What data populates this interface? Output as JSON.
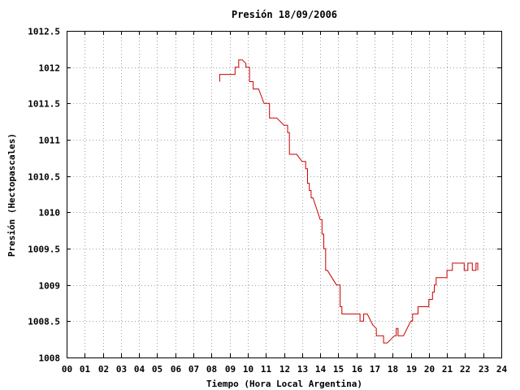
{
  "chart_data": {
    "type": "line",
    "title": "Presión 18/09/2006",
    "xlabel": "Tiempo (Hora Local Argentina)",
    "ylabel": "Presión (Hectopascales)",
    "xlim": [
      0,
      24
    ],
    "ylim": [
      1008,
      1012.5
    ],
    "x_ticks": [
      0,
      1,
      2,
      3,
      4,
      5,
      6,
      7,
      8,
      9,
      10,
      11,
      12,
      13,
      14,
      15,
      16,
      17,
      18,
      19,
      20,
      21,
      22,
      23,
      24
    ],
    "x_tick_labels": [
      "00",
      "01",
      "02",
      "03",
      "04",
      "05",
      "06",
      "07",
      "08",
      "09",
      "10",
      "11",
      "12",
      "13",
      "14",
      "15",
      "16",
      "17",
      "18",
      "19",
      "20",
      "21",
      "22",
      "23",
      "24"
    ],
    "y_ticks": [
      1008,
      1008.5,
      1009,
      1009.5,
      1010,
      1010.5,
      1011,
      1011.5,
      1012,
      1012.5
    ],
    "y_tick_labels": [
      "1008",
      "1008.5",
      "1009",
      "1009.5",
      "1010",
      "1010.5",
      "1011",
      "1011.5",
      "1012",
      "1012.5"
    ],
    "grid": true,
    "legend": "none",
    "series": [
      {
        "color": "#cc0000",
        "points": [
          [
            8.45,
            1011.8
          ],
          [
            8.45,
            1011.9
          ],
          [
            9.3,
            1011.9
          ],
          [
            9.3,
            1012.0
          ],
          [
            9.5,
            1012.0
          ],
          [
            9.5,
            1012.1
          ],
          [
            9.7,
            1012.1
          ],
          [
            9.9,
            1012.05
          ],
          [
            9.9,
            1012.0
          ],
          [
            10.1,
            1012.0
          ],
          [
            10.1,
            1011.8
          ],
          [
            10.3,
            1011.8
          ],
          [
            10.3,
            1011.7
          ],
          [
            10.6,
            1011.7
          ],
          [
            10.9,
            1011.5
          ],
          [
            11.2,
            1011.5
          ],
          [
            11.2,
            1011.3
          ],
          [
            11.6,
            1011.3
          ],
          [
            12.0,
            1011.2
          ],
          [
            12.2,
            1011.2
          ],
          [
            12.2,
            1011.1
          ],
          [
            12.3,
            1011.1
          ],
          [
            12.3,
            1010.8
          ],
          [
            12.7,
            1010.8
          ],
          [
            13.0,
            1010.7
          ],
          [
            13.2,
            1010.7
          ],
          [
            13.2,
            1010.6
          ],
          [
            13.3,
            1010.6
          ],
          [
            13.3,
            1010.4
          ],
          [
            13.4,
            1010.4
          ],
          [
            13.4,
            1010.3
          ],
          [
            13.5,
            1010.3
          ],
          [
            13.5,
            1010.2
          ],
          [
            13.6,
            1010.2
          ],
          [
            14.0,
            1009.9
          ],
          [
            14.1,
            1009.9
          ],
          [
            14.1,
            1009.7
          ],
          [
            14.2,
            1009.7
          ],
          [
            14.2,
            1009.5
          ],
          [
            14.3,
            1009.5
          ],
          [
            14.3,
            1009.2
          ],
          [
            14.4,
            1009.2
          ],
          [
            14.9,
            1009.0
          ],
          [
            15.1,
            1009.0
          ],
          [
            15.1,
            1008.7
          ],
          [
            15.2,
            1008.7
          ],
          [
            15.2,
            1008.6
          ],
          [
            16.2,
            1008.6
          ],
          [
            16.2,
            1008.5
          ],
          [
            16.4,
            1008.5
          ],
          [
            16.4,
            1008.6
          ],
          [
            16.6,
            1008.6
          ],
          [
            16.9,
            1008.45
          ],
          [
            17.1,
            1008.4
          ],
          [
            17.1,
            1008.3
          ],
          [
            17.5,
            1008.3
          ],
          [
            17.5,
            1008.2
          ],
          [
            17.7,
            1008.2
          ],
          [
            17.9,
            1008.25
          ],
          [
            18.1,
            1008.3
          ],
          [
            18.2,
            1008.3
          ],
          [
            18.2,
            1008.4
          ],
          [
            18.3,
            1008.4
          ],
          [
            18.3,
            1008.3
          ],
          [
            18.6,
            1008.3
          ],
          [
            19.0,
            1008.5
          ],
          [
            19.1,
            1008.5
          ],
          [
            19.1,
            1008.6
          ],
          [
            19.4,
            1008.6
          ],
          [
            19.4,
            1008.7
          ],
          [
            20.0,
            1008.7
          ],
          [
            20.0,
            1008.8
          ],
          [
            20.2,
            1008.8
          ],
          [
            20.2,
            1008.9
          ],
          [
            20.3,
            1008.9
          ],
          [
            20.3,
            1009.0
          ],
          [
            20.4,
            1009.0
          ],
          [
            20.4,
            1009.1
          ],
          [
            21.0,
            1009.1
          ],
          [
            21.0,
            1009.2
          ],
          [
            21.3,
            1009.2
          ],
          [
            21.3,
            1009.3
          ],
          [
            21.95,
            1009.3
          ],
          [
            21.95,
            1009.2
          ],
          [
            22.15,
            1009.2
          ],
          [
            22.15,
            1009.3
          ],
          [
            22.4,
            1009.3
          ],
          [
            22.4,
            1009.2
          ],
          [
            22.6,
            1009.2
          ],
          [
            22.6,
            1009.3
          ],
          [
            22.7,
            1009.3
          ],
          [
            22.7,
            1009.2
          ]
        ]
      }
    ]
  }
}
